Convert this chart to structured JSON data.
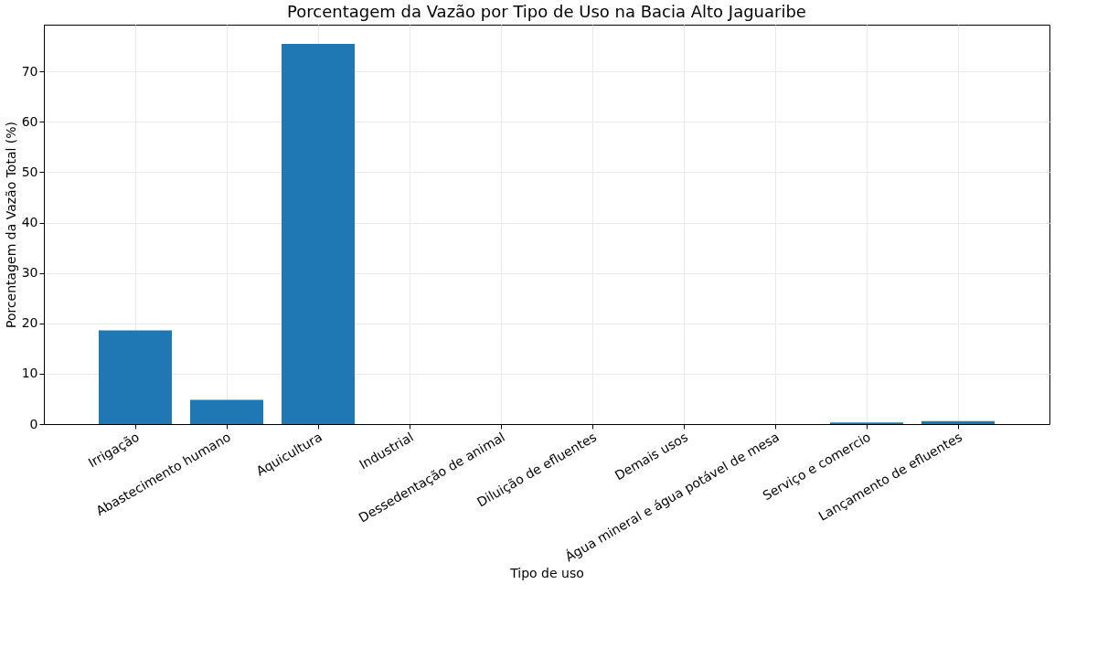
{
  "chart_data": {
    "type": "bar",
    "title": "Porcentagem da Vazão por Tipo de Uso na Bacia Alto Jaguaribe",
    "xlabel": "Tipo de uso",
    "ylabel": "Porcentagem da Vazão Total (%)",
    "categories": [
      "Irrigação",
      "Abastecimento humano",
      "Aquicultura",
      "Industrial",
      "Dessedentação de animal",
      "Diluição de efluentes",
      "Demais usos",
      "Água mineral e água potável de mesa",
      "Serviço e comercio",
      "Lançamento de efluentes"
    ],
    "values": [
      18.6,
      4.8,
      75.5,
      0,
      0,
      0,
      0,
      0,
      0.3,
      0.6
    ],
    "color": "#1f77b4",
    "ylim": [
      0,
      79.3
    ],
    "yticks": [
      0,
      10,
      20,
      30,
      40,
      50,
      60,
      70
    ],
    "grid": true
  }
}
